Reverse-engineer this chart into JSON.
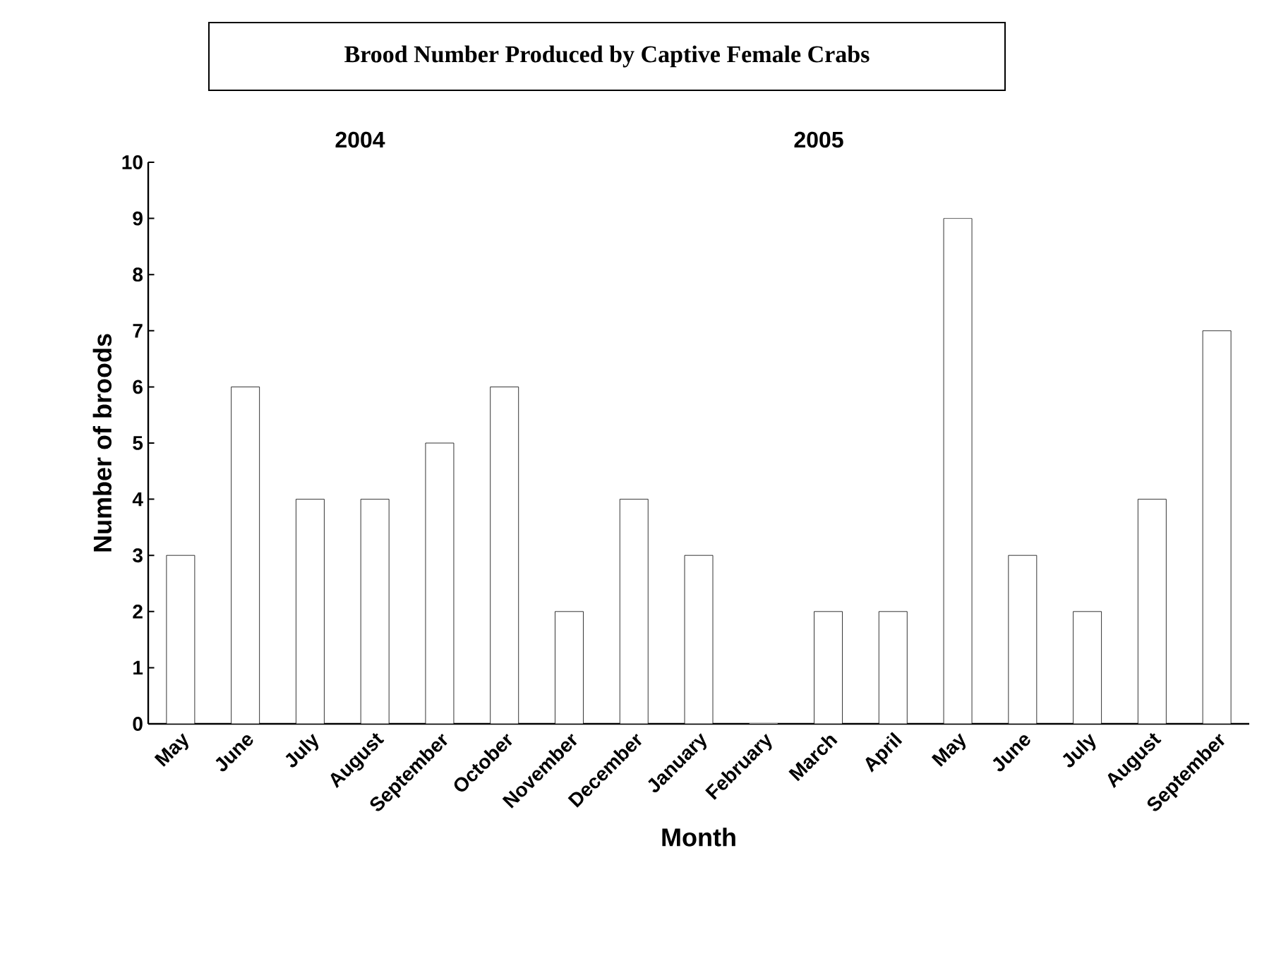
{
  "chart_data": {
    "type": "bar",
    "title": "Brood Number Produced by Captive Female Crabs",
    "annotations": [
      "2004",
      "2005"
    ],
    "xlabel": "Month",
    "ylabel": "Number of broods",
    "categories": [
      "May",
      "June",
      "July",
      "August",
      "September",
      "October",
      "November",
      "December",
      "January",
      "February",
      "March",
      "April",
      "May",
      "June",
      "July",
      "August",
      "September"
    ],
    "values": [
      3,
      6,
      4,
      4,
      5,
      6,
      2,
      4,
      3,
      0,
      2,
      2,
      9,
      3,
      2,
      4,
      7
    ],
    "color": "#ffffff",
    "ylim": [
      0,
      10
    ],
    "yticks": [
      0,
      1,
      2,
      3,
      4,
      5,
      6,
      7,
      8,
      9,
      10
    ],
    "grid": false
  }
}
